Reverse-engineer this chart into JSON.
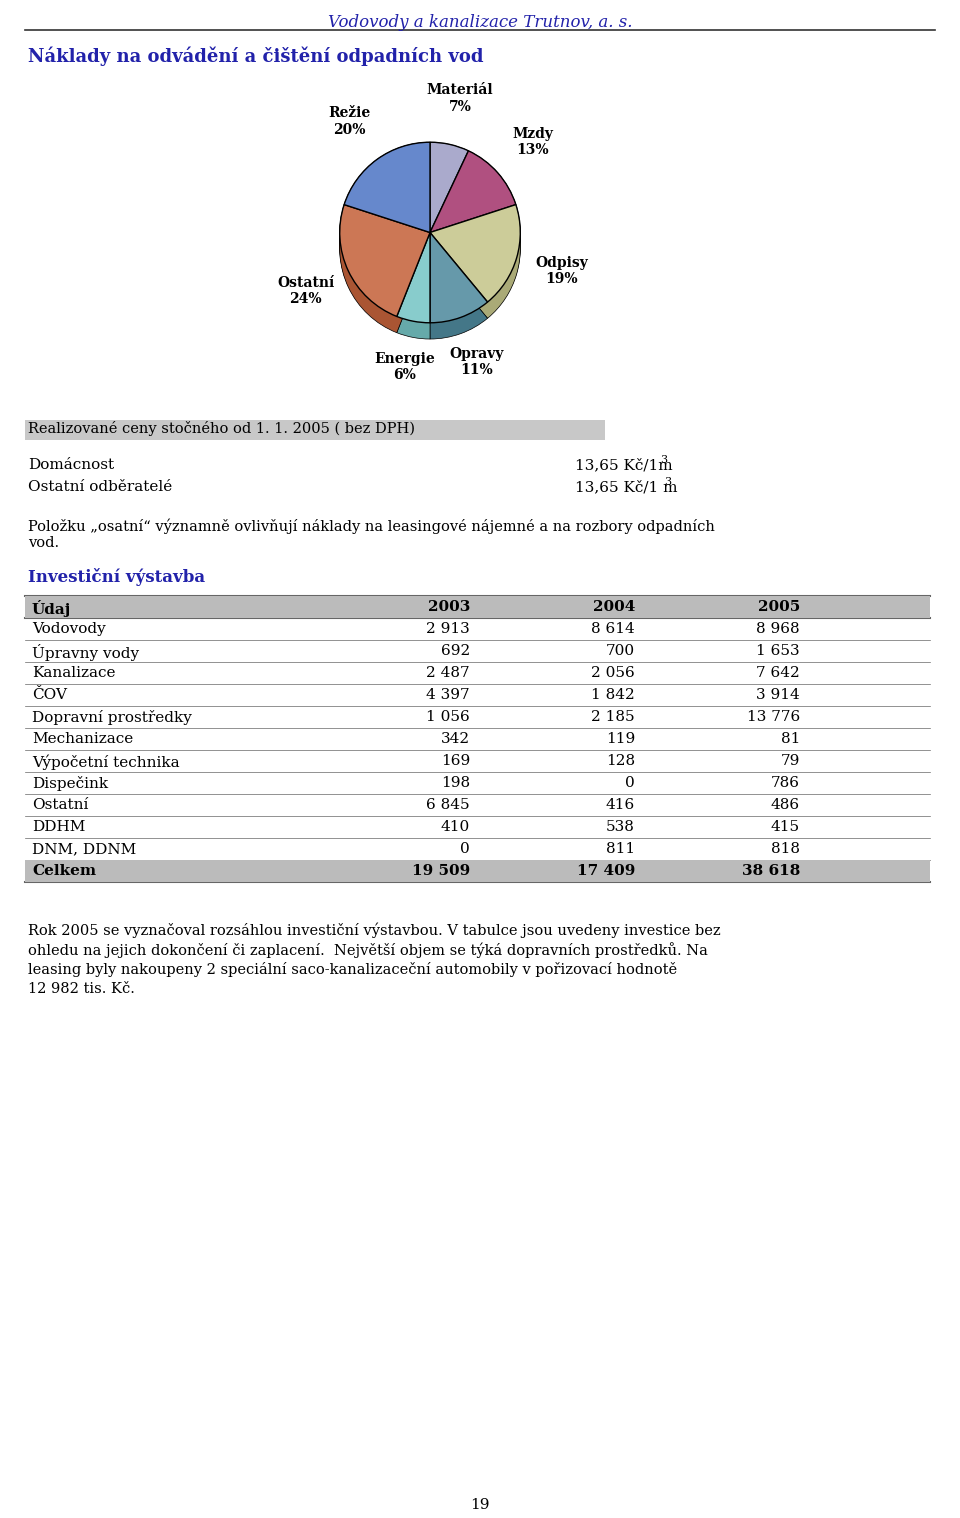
{
  "page_title": "Vodovody a kanalizace Trutnov, a. s.",
  "section1_title": "Náklady na odvádění a čištění odpadních vod",
  "pie_labels_short": [
    "Materiál",
    "Mzdy",
    "Odpisy",
    "Opravy",
    "Energie",
    "Ostatní",
    "Režie"
  ],
  "pie_pcts": [
    "7%",
    "13%",
    "19%",
    "11%",
    "6%",
    "24%",
    "20%"
  ],
  "pie_values": [
    7,
    13,
    19,
    11,
    6,
    24,
    20
  ],
  "pie_colors": [
    "#aaaacc",
    "#b05080",
    "#cccc99",
    "#6699aa",
    "#88cccc",
    "#cc7755",
    "#6688cc"
  ],
  "pie_colors_dark": [
    "#8888aa",
    "#804060",
    "#aaaa77",
    "#447788",
    "#66aaaa",
    "#aa5533",
    "#4466aa"
  ],
  "section2_header": "Realizované ceny stočného od 1. 1. 2005 ( bez DPH)",
  "domacnost_label": "Domácnost",
  "domacnost_price": "13,65 Kč/1m",
  "ostatni_label": "Ostatní odběratelé",
  "ostatni_price": "13,65 Kč/1 m",
  "poznamka_line1": "Položku „osatní“ významně ovlivňují náklady na leasingové nájemné a na rozbory odpadních",
  "poznamka_line2": "vod.",
  "section3_title": "Investiční výstavba",
  "table_header": [
    "Údaj",
    "2003",
    "2004",
    "2005"
  ],
  "table_rows": [
    [
      "Vodovody",
      "2 913",
      "8 614",
      "8 968"
    ],
    [
      "Úpravny vody",
      "692",
      "700",
      "1 653"
    ],
    [
      "Kanalizace",
      "2 487",
      "2 056",
      "7 642"
    ],
    [
      "ČOV",
      "4 397",
      "1 842",
      "3 914"
    ],
    [
      "Dopravní prostředky",
      "1 056",
      "2 185",
      "13 776"
    ],
    [
      "Mechanizace",
      "342",
      "119",
      "81"
    ],
    [
      "Výpočetní technika",
      "169",
      "128",
      "79"
    ],
    [
      "Dispečink",
      "198",
      "0",
      "786"
    ],
    [
      "Ostatní",
      "6 845",
      "416",
      "486"
    ],
    [
      "DDHM",
      "410",
      "538",
      "415"
    ],
    [
      "DNM, DDNM",
      "0",
      "811",
      "818"
    ]
  ],
  "table_total": [
    "Celkem",
    "19 509",
    "17 409",
    "38 618"
  ],
  "footer_lines": [
    "Rok 2005 se vyznačoval rozsáhlou investiční výstavbou. V tabulce jsou uvedeny investice bez",
    "ohledu na jejich dokončení či zaplacení.  Největší objem se týká dopravních prostředků. Na",
    "leasing byly nakoupeny 2 speciální saco-kanalizaceční automobily v pořizovací hodnotě",
    "12 982 tis. Kč."
  ],
  "page_number": "19",
  "bg_color": "#ffffff",
  "header_color": "#2222aa",
  "text_color": "#000000",
  "table_header_bg": "#bbbbbb",
  "table_total_bg": "#bbbbbb",
  "pie_box_bg": "#cccccc"
}
